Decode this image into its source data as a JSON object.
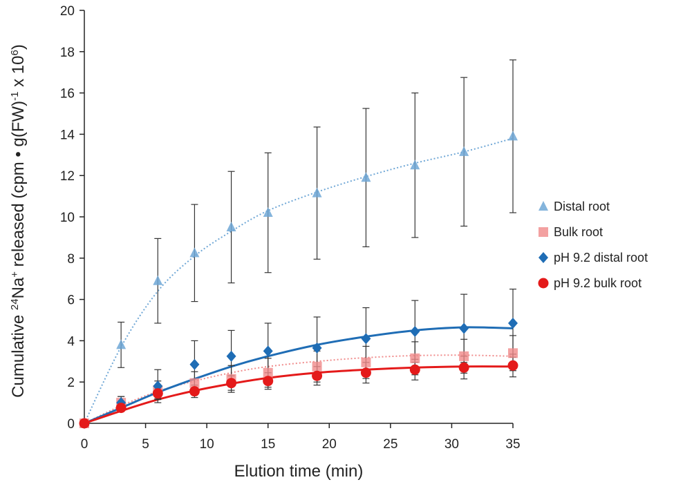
{
  "chart_data": {
    "type": "scatter",
    "title": "",
    "xlabel": "Elution time (min)",
    "ylabel": {
      "parts": [
        {
          "text": "Cumulative "
        },
        {
          "text": "24",
          "sup": true
        },
        {
          "text": "Na"
        },
        {
          "text": "+",
          "sup": true
        },
        {
          "text": " released (cpm • g(FW)"
        },
        {
          "text": "-1",
          "sup": true
        },
        {
          "text": " x 10"
        },
        {
          "text": "6",
          "sup": true
        },
        {
          "text": ")"
        }
      ]
    },
    "xlim": [
      0,
      35
    ],
    "ylim": [
      0,
      20
    ],
    "xticks": [
      0,
      5,
      10,
      15,
      20,
      25,
      30,
      35
    ],
    "yticks": [
      0,
      2,
      4,
      6,
      8,
      10,
      12,
      14,
      16,
      18,
      20
    ],
    "grid": false,
    "legend_position": "right",
    "x": [
      0,
      3,
      6,
      9,
      12,
      15,
      19,
      23,
      27,
      31,
      35
    ],
    "series": [
      {
        "name": "Distal root",
        "marker": "triangle",
        "color": "#6fa7d6",
        "trend_style": "dotted",
        "values": [
          0,
          3.8,
          6.9,
          8.25,
          9.5,
          10.2,
          11.15,
          11.9,
          12.5,
          13.15,
          13.9
        ],
        "error": [
          0,
          1.1,
          2.05,
          2.35,
          2.7,
          2.9,
          3.2,
          3.35,
          3.5,
          3.6,
          3.7
        ],
        "trend": [
          0,
          3.7,
          6.4,
          8.1,
          9.3,
          10.3,
          11.2,
          11.95,
          12.6,
          13.15,
          13.8
        ]
      },
      {
        "name": "Bulk root",
        "marker": "square",
        "color": "#f08a8a",
        "trend_style": "dotted",
        "values": [
          0,
          1.0,
          1.6,
          1.95,
          2.15,
          2.45,
          2.75,
          2.95,
          3.15,
          3.25,
          3.4
        ],
        "error": [
          0,
          0.3,
          0.45,
          0.55,
          0.65,
          0.7,
          0.75,
          0.78,
          0.8,
          0.82,
          0.85
        ],
        "trend": [
          0,
          0.85,
          1.55,
          2.05,
          2.45,
          2.75,
          3.0,
          3.18,
          3.28,
          3.3,
          3.25
        ]
      },
      {
        "name": "pH 9.2 distal root",
        "marker": "diamond",
        "color": "#1f6db5",
        "trend_style": "solid",
        "values": [
          0,
          1.0,
          1.8,
          2.85,
          3.25,
          3.5,
          3.65,
          4.1,
          4.45,
          4.6,
          4.85
        ],
        "error": [
          0,
          0.3,
          0.8,
          1.15,
          1.25,
          1.35,
          1.5,
          1.5,
          1.5,
          1.65,
          1.65
        ],
        "trend": [
          0,
          0.75,
          1.5,
          2.15,
          2.75,
          3.25,
          3.8,
          4.2,
          4.5,
          4.65,
          4.6
        ]
      },
      {
        "name": "pH 9.2 bulk root",
        "marker": "circle",
        "color": "#e41a1a",
        "trend_style": "solid",
        "values": [
          0,
          0.75,
          1.45,
          1.55,
          1.95,
          2.05,
          2.3,
          2.45,
          2.6,
          2.7,
          2.8
        ],
        "error": [
          0,
          0.15,
          0.25,
          0.3,
          0.35,
          0.4,
          0.45,
          0.5,
          0.5,
          0.55,
          0.55
        ],
        "trend": [
          0,
          0.6,
          1.15,
          1.58,
          1.92,
          2.2,
          2.45,
          2.6,
          2.7,
          2.75,
          2.75
        ]
      }
    ]
  }
}
